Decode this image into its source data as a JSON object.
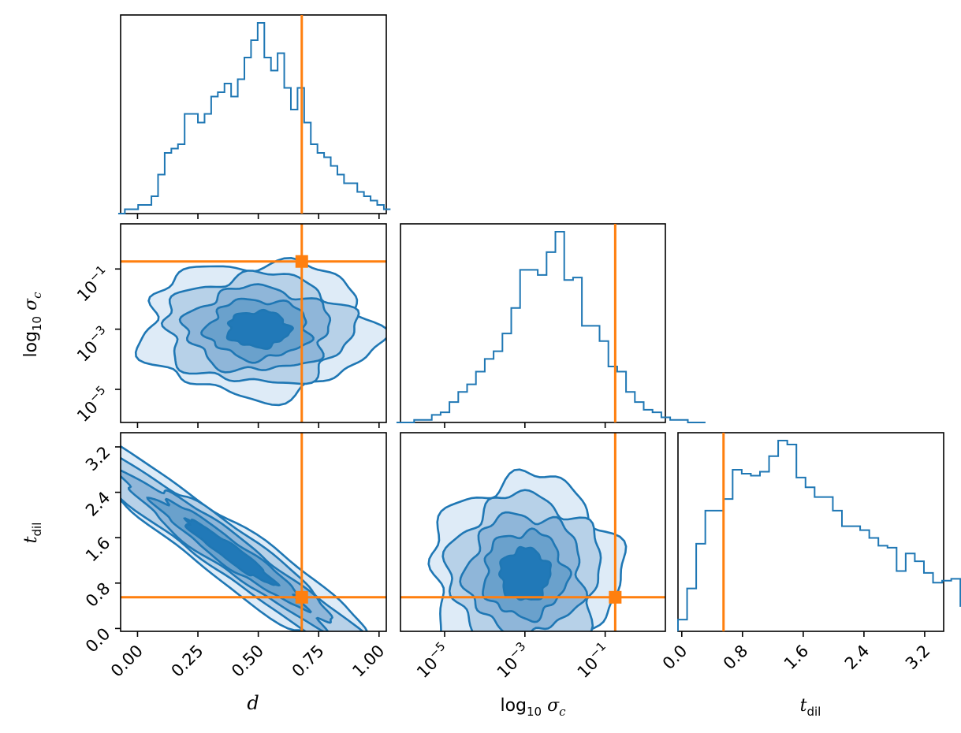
{
  "colors": {
    "hist": "#1f77b4",
    "truth": "#ff7f0e",
    "contour_fills": [
      "#deebf7",
      "#b7d1e8",
      "#8fb6d9",
      "#6aa1cc",
      "#2179b8"
    ]
  },
  "chart_data": {
    "type": "corner",
    "parameters": [
      {
        "key": "d",
        "label": "d",
        "ticks": [
          "0.00",
          "0.25",
          "0.50",
          "0.75",
          "1.00"
        ],
        "range": [
          -0.07,
          1.03
        ]
      },
      {
        "key": "log10_sigma_c",
        "label": "log10 σc",
        "ticks": [
          "10^-5",
          "10^-3",
          "10^-1"
        ],
        "log": true,
        "range": [
          -6.1,
          0.5
        ]
      },
      {
        "key": "t_dil",
        "label": "t_dil",
        "ticks": [
          "0.0",
          "0.8",
          "1.6",
          "2.4",
          "3.2"
        ],
        "range": [
          -0.05,
          3.45
        ]
      }
    ],
    "truths": {
      "d": 0.68,
      "log10_sigma_c": -0.75,
      "t_dil": 0.55
    },
    "histograms": {
      "d": {
        "bin_start": -0.08,
        "bin_width": 0.0275,
        "counts": [
          0,
          1,
          1,
          2,
          2,
          4,
          9,
          14,
          15,
          16,
          23,
          23,
          21,
          23,
          27,
          28,
          30,
          27,
          31,
          36,
          40,
          44,
          36,
          33,
          37,
          29,
          24,
          29,
          21,
          16,
          14,
          13,
          11,
          9,
          7,
          7,
          5,
          4,
          3,
          2,
          1
        ]
      },
      "log10_sigma_c": {
        "bin_start": -6.2,
        "bin_width": 0.22,
        "counts": [
          0,
          0,
          1,
          1,
          3,
          4,
          8,
          12,
          15,
          20,
          25,
          28,
          35,
          45,
          60,
          60,
          58,
          67,
          75,
          56,
          57,
          38,
          38,
          32,
          22,
          20,
          12,
          8,
          5,
          4,
          2,
          1,
          1,
          0,
          0
        ]
      },
      "t_dil": {
        "bin_start": -0.05,
        "bin_width": 0.12,
        "counts": [
          6,
          22,
          45,
          62,
          62,
          68,
          83,
          81,
          80,
          82,
          90,
          98,
          96,
          79,
          74,
          69,
          69,
          62,
          54,
          54,
          52,
          48,
          44,
          43,
          31,
          40,
          36,
          30,
          25,
          26,
          27,
          13,
          11,
          7,
          6,
          3,
          2,
          1,
          2
        ]
      }
    },
    "contours_2d": [
      {
        "x": "d",
        "y": "log10_sigma_c",
        "density_peak": [
          0.5,
          -3.0
        ],
        "shape": "broad-uncorrelated"
      },
      {
        "x": "d",
        "y": "t_dil",
        "density_peak": [
          0.35,
          1.4
        ],
        "shape": "strong-negative-correlation"
      },
      {
        "x": "log10_sigma_c",
        "y": "t_dil",
        "density_peak": [
          -3.0,
          0.9
        ],
        "shape": "broad-uncorrelated"
      }
    ]
  }
}
